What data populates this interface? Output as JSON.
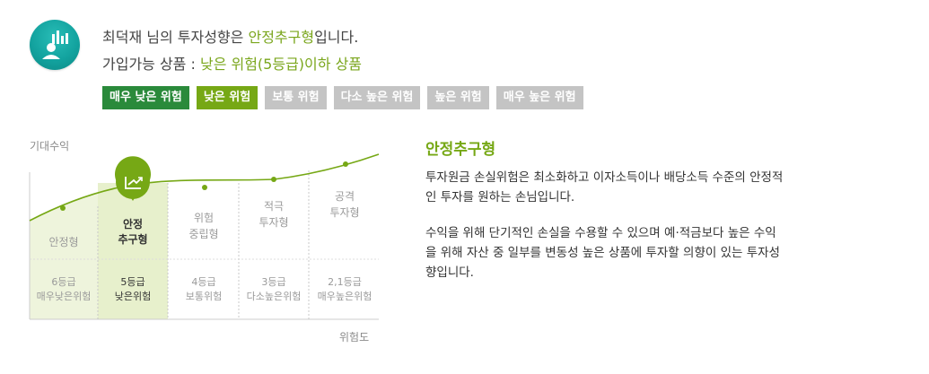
{
  "profile": {
    "line1_prefix": "최덕재 님의 투자성향은 ",
    "line1_type": "안정추구형",
    "line1_suffix": "입니다.",
    "line2_prefix": "가입가능 상품 : ",
    "line2_value": "낮은 위험(5등급)이하 상품",
    "avatar_icon": "investor-chart-icon"
  },
  "risk_levels": [
    {
      "label": "매우 낮은 위험",
      "state": "included"
    },
    {
      "label": "낮은 위험",
      "state": "current"
    },
    {
      "label": "보통 위험",
      "state": "excluded"
    },
    {
      "label": "다소 높은 위험",
      "state": "excluded"
    },
    {
      "label": "높은 위험",
      "state": "excluded"
    },
    {
      "label": "매우 높은 위험",
      "state": "excluded"
    }
  ],
  "chart": {
    "y_axis_label": "기대수익",
    "x_axis_label": "위험도",
    "marker_icon": "trend-arrow-icon",
    "types": [
      {
        "line1": "안정형",
        "line2": "",
        "grade": "6등급",
        "grade_desc": "매우낮은위험",
        "selected": false
      },
      {
        "line1": "안정",
        "line2": "추구형",
        "grade": "5등급",
        "grade_desc": "낮은위험",
        "selected": true
      },
      {
        "line1": "위험",
        "line2": "중립형",
        "grade": "4등급",
        "grade_desc": "보통위험",
        "selected": false
      },
      {
        "line1": "적극",
        "line2": "투자형",
        "grade": "3등급",
        "grade_desc": "다소높은위험",
        "selected": false
      },
      {
        "line1": "공격",
        "line2": "투자형",
        "grade": "2,1등급",
        "grade_desc": "매우높은위험",
        "selected": false
      }
    ]
  },
  "description": {
    "title": "안정추구형",
    "para1": "투자원금 손실위험은 최소화하고 이자소득이나 배당소득 수준의 안정적인 투자를 원하는 손님입니다.",
    "para2": "수익을 위해 단기적인 손실을 수용할 수 있으며 예·적금보다 높은 수익을 위해 자산 중 일부를 변동성 높은 상품에 투자할 의향이 있는 투자성향입니다."
  },
  "colors": {
    "accent_green": "#76a815",
    "dark_green": "#2a8a3b",
    "pill_gray": "#c4c4c4",
    "avatar_teal": "#13a39f",
    "chart_fill": "#eef4dc"
  }
}
